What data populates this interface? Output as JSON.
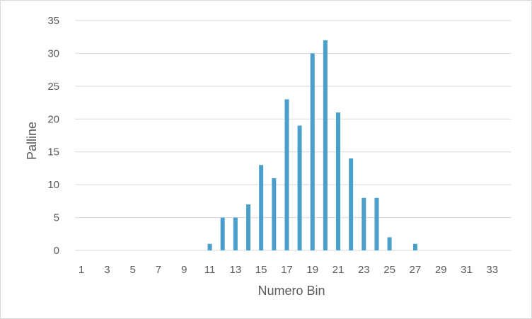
{
  "chart_data": {
    "type": "bar",
    "title": "",
    "xlabel": "Numero Bin",
    "ylabel": "Palline",
    "ylim": [
      0,
      35
    ],
    "yticks": [
      0,
      5,
      10,
      15,
      20,
      25,
      30,
      35
    ],
    "grid": true,
    "legend": "none",
    "bar_color": "#4a9fcb",
    "categories": [
      1,
      2,
      3,
      4,
      5,
      6,
      7,
      8,
      9,
      10,
      11,
      12,
      13,
      14,
      15,
      16,
      17,
      18,
      19,
      20,
      21,
      22,
      23,
      24,
      25,
      26,
      27,
      28,
      29,
      30,
      31,
      32,
      33,
      34
    ],
    "xtick_labels": [
      "1",
      "3",
      "5",
      "7",
      "9",
      "11",
      "13",
      "15",
      "17",
      "19",
      "21",
      "23",
      "25",
      "27",
      "29",
      "31",
      "33"
    ],
    "values": [
      0,
      0,
      0,
      0,
      0,
      0,
      0,
      0,
      0,
      0,
      1,
      5,
      5,
      7,
      13,
      11,
      23,
      19,
      30,
      32,
      21,
      14,
      8,
      8,
      2,
      0,
      1,
      0,
      0,
      0,
      0,
      0,
      0,
      0
    ]
  }
}
